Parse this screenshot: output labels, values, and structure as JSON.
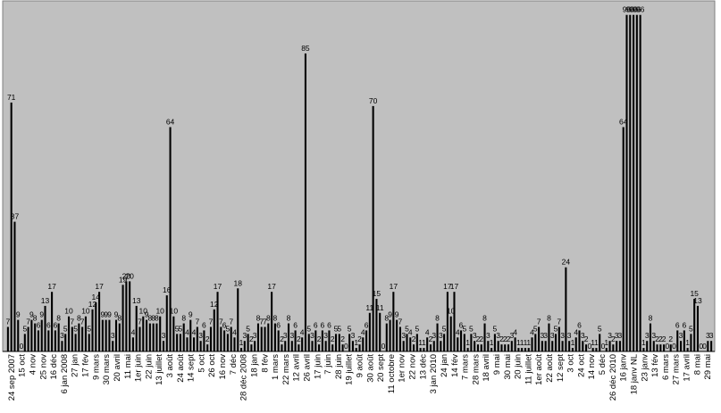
{
  "chart_data": {
    "type": "bar",
    "title": "",
    "xlabel": "",
    "ylabel": "",
    "ylim": [
      0,
      100
    ],
    "grid": false,
    "legend": "none",
    "colors": {
      "bar": "#000000",
      "plot_background": "#c0c0c0",
      "page_background": "#ffffff",
      "axis": "#808080"
    },
    "values": [
      7,
      71,
      37,
      9,
      0,
      5,
      7,
      9,
      8,
      6,
      9,
      13,
      6,
      17,
      6,
      8,
      3,
      5,
      10,
      7,
      5,
      8,
      7,
      10,
      5,
      12,
      14,
      17,
      9,
      9,
      9,
      3,
      9,
      8,
      19,
      20,
      20,
      4,
      13,
      7,
      10,
      9,
      8,
      8,
      8,
      10,
      3,
      16,
      64,
      10,
      5,
      5,
      8,
      4,
      9,
      4,
      7,
      3,
      6,
      2,
      7,
      12,
      17,
      7,
      6,
      5,
      7,
      4,
      18,
      1,
      3,
      5,
      2,
      3,
      8,
      7,
      7,
      8,
      17,
      8,
      6,
      2,
      3,
      8,
      3,
      6,
      2,
      4,
      85,
      5,
      3,
      6,
      2,
      6,
      3,
      6,
      2,
      5,
      5,
      2,
      0,
      5,
      3,
      1,
      2,
      4,
      6,
      11,
      70,
      15,
      11,
      0,
      8,
      9,
      17,
      9,
      7,
      3,
      5,
      4,
      2,
      5,
      1,
      1,
      4,
      2,
      3,
      8,
      3,
      5,
      17,
      10,
      17,
      4,
      6,
      5,
      1,
      5,
      3,
      2,
      2,
      8,
      3,
      1,
      5,
      3,
      2,
      2,
      2,
      3,
      4,
      1,
      1,
      1,
      1,
      4,
      5,
      7,
      3,
      3,
      8,
      3,
      5,
      7,
      3,
      24,
      3,
      1,
      4,
      6,
      3,
      2,
      0,
      1,
      1,
      5,
      0,
      1,
      3,
      2,
      3,
      3,
      64,
      96,
      96,
      96,
      96,
      96,
      1,
      3,
      8,
      3,
      2,
      2,
      2,
      0,
      2,
      0,
      6,
      3,
      6,
      1,
      5,
      15,
      13,
      0,
      0,
      3,
      3
    ],
    "x_tick_labels": [
      "24 sep 2007",
      "15 oct",
      "4 nov",
      "25 nov",
      "16 déc",
      "6 jan 2008",
      "27 jan",
      "17 fév",
      "9 mars",
      "30 mars",
      "20 avril",
      "11 mai",
      "1er juin",
      "22 juin",
      "13 juillet",
      "3 août",
      "24 août",
      "14 sept",
      "5 oct",
      "26 oct",
      "16 nov",
      "7 déc",
      "28 déc 2008",
      "18 jan",
      "8 fév",
      "1 mars",
      "22 mars",
      "12 avril",
      "26 avril",
      "17 juin",
      "7 juin",
      "28 juin",
      "19 juillet",
      "9 août",
      "30 août",
      "20 sept",
      "11 octobre",
      "1er nov",
      "22 nov",
      "13 déc",
      "3 jan 2010",
      "24 jan",
      "14 fév",
      "7 mars",
      "28 mars",
      "18 avril",
      "9 mai",
      "30 mai",
      "20 juin",
      "11 juillet",
      "1er août",
      "22 août",
      "12 sept",
      "3 oct",
      "24 oct",
      "14 nov",
      "5 déc",
      "26 déc 2010",
      "16 janv",
      "18 janv NL",
      "23 janv",
      "13 fév",
      "6 mars",
      "27 mars",
      "17 avril",
      "8 mai",
      "29 mai"
    ]
  }
}
